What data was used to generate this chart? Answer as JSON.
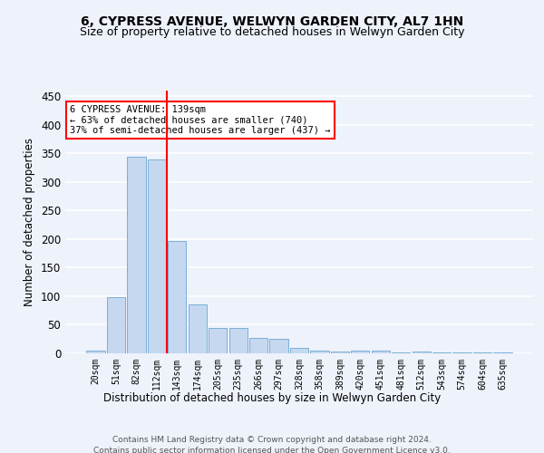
{
  "title": "6, CYPRESS AVENUE, WELWYN GARDEN CITY, AL7 1HN",
  "subtitle": "Size of property relative to detached houses in Welwyn Garden City",
  "xlabel": "Distribution of detached houses by size in Welwyn Garden City",
  "ylabel": "Number of detached properties",
  "footer_line1": "Contains HM Land Registry data © Crown copyright and database right 2024.",
  "footer_line2": "Contains public sector information licensed under the Open Government Licence v3.0.",
  "categories": [
    "20sqm",
    "51sqm",
    "82sqm",
    "112sqm",
    "143sqm",
    "174sqm",
    "205sqm",
    "235sqm",
    "266sqm",
    "297sqm",
    "328sqm",
    "358sqm",
    "389sqm",
    "420sqm",
    "451sqm",
    "481sqm",
    "512sqm",
    "543sqm",
    "574sqm",
    "604sqm",
    "635sqm"
  ],
  "values": [
    5,
    99,
    345,
    340,
    197,
    85,
    44,
    44,
    27,
    26,
    10,
    5,
    3,
    5,
    5,
    1,
    3,
    1,
    1,
    1,
    2
  ],
  "bar_color": "#c5d8f0",
  "bar_edge_color": "#7aafd4",
  "vline_x_index": 4,
  "vline_color": "red",
  "annotation_title": "6 CYPRESS AVENUE: 139sqm",
  "annotation_line1": "← 63% of detached houses are smaller (740)",
  "annotation_line2": "37% of semi-detached houses are larger (437) →",
  "annotation_box_color": "white",
  "annotation_box_edge": "red",
  "ylim": [
    0,
    460
  ],
  "yticks": [
    0,
    50,
    100,
    150,
    200,
    250,
    300,
    350,
    400,
    450
  ],
  "background_color": "#eef2fb",
  "grid_color": "white",
  "title_fontsize": 10,
  "subtitle_fontsize": 9
}
